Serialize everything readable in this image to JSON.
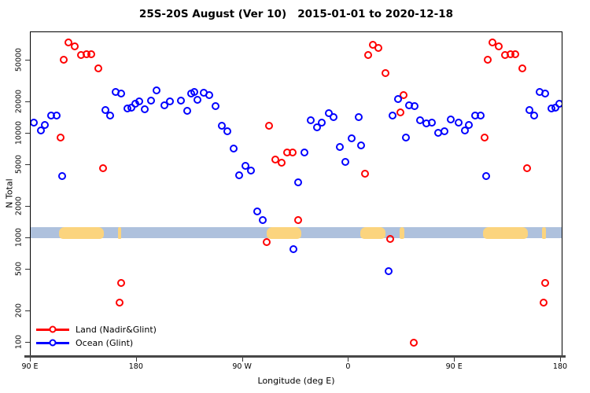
{
  "chart_data": {
    "type": "scatter",
    "title": "25S-20S August (Ver 10)   2015-01-01 to 2020-12-18",
    "xlabel": "Longitude (deg E)",
    "ylabel": "N Total",
    "y_scale": "log",
    "ylim": [
      80,
      94000
    ],
    "grid": false,
    "y_ticks": [
      100,
      200,
      500,
      1000,
      2000,
      5000,
      10000,
      20000,
      50000
    ],
    "x_ticks": [
      {
        "pos_deg": 0,
        "label": "90 E"
      },
      {
        "pos_deg": 90,
        "label": "180"
      },
      {
        "pos_deg": 180,
        "label": "90 W"
      },
      {
        "pos_deg": 270,
        "label": "0"
      },
      {
        "pos_deg": 360,
        "label": "90 E"
      },
      {
        "pos_deg": 450,
        "label": "180"
      }
    ],
    "x_axis_note": "axis runs eastward from 90E across 450 deg; data with lon 90E-180 is plotted at both ends",
    "legend": [
      {
        "label": "Land (Nadir&Glint)",
        "color": "#ff0000"
      },
      {
        "label": "Ocean (Glint)",
        "color": "#0000ff"
      }
    ],
    "legend_position": "bottom-left",
    "map_band": {
      "ocean_color": "#aec1dd",
      "land_color": "#fbd47e",
      "top_n": 1265,
      "bottom_n": 992,
      "patches": [
        {
          "name": "australia",
          "lon": [
            114,
            152
          ]
        },
        {
          "name": "new-caledonia",
          "lon": [
            164,
            167
          ]
        },
        {
          "name": "south-america",
          "lon": [
            -70,
            -40
          ]
        },
        {
          "name": "africa",
          "lon": [
            10,
            31
          ]
        },
        {
          "name": "madagascar",
          "lon": [
            43,
            47
          ]
        }
      ]
    },
    "series": [
      {
        "name": "Land (Nadir&Glint)",
        "color": "#ff0000",
        "points": [
          {
            "lon": -69.9,
            "n": 920
          },
          {
            "lon": -67.7,
            "n": 11800
          },
          {
            "lon": -62.4,
            "n": 5600
          },
          {
            "lon": -57.2,
            "n": 5300
          },
          {
            "lon": -52.1,
            "n": 6600
          },
          {
            "lon": -47.9,
            "n": 6600
          },
          {
            "lon": -42.8,
            "n": 1500
          },
          {
            "lon": 13.6,
            "n": 4100
          },
          {
            "lon": 16.6,
            "n": 56000
          },
          {
            "lon": 20.6,
            "n": 71000
          },
          {
            "lon": 25.1,
            "n": 66000
          },
          {
            "lon": 31.3,
            "n": 38000
          },
          {
            "lon": 35.1,
            "n": 990
          },
          {
            "lon": 44.0,
            "n": 16000
          },
          {
            "lon": 46.3,
            "n": 23300
          },
          {
            "lon": 55.2,
            "n": 100
          },
          {
            "lon": 115.2,
            "n": 9200
          },
          {
            "lon": 117.8,
            "n": 51000
          },
          {
            "lon": 121.9,
            "n": 74000
          },
          {
            "lon": 127.2,
            "n": 68000
          },
          {
            "lon": 132.7,
            "n": 56000
          },
          {
            "lon": 137.2,
            "n": 57000
          },
          {
            "lon": 141.6,
            "n": 57000
          },
          {
            "lon": 147.2,
            "n": 42000
          },
          {
            "lon": 151.6,
            "n": 4700
          },
          {
            "lon": 165.2,
            "n": 240
          },
          {
            "lon": 166.6,
            "n": 370
          }
        ]
      },
      {
        "name": "Ocean (Glint)",
        "color": "#0000ff",
        "points": [
          {
            "lon": -177.7,
            "n": 20200
          },
          {
            "lon": -173.2,
            "n": 17100
          },
          {
            "lon": -167.7,
            "n": 20600
          },
          {
            "lon": -163.2,
            "n": 26000
          },
          {
            "lon": -156.7,
            "n": 18500
          },
          {
            "lon": -151.8,
            "n": 20200
          },
          {
            "lon": -142.5,
            "n": 20600
          },
          {
            "lon": -137.3,
            "n": 16500
          },
          {
            "lon": -133.6,
            "n": 24000
          },
          {
            "lon": -131.0,
            "n": 25000
          },
          {
            "lon": -128.5,
            "n": 21200
          },
          {
            "lon": -123.3,
            "n": 24600
          },
          {
            "lon": -118.2,
            "n": 23200
          },
          {
            "lon": -112.9,
            "n": 18200
          },
          {
            "lon": -107.7,
            "n": 11800
          },
          {
            "lon": -102.9,
            "n": 10500
          },
          {
            "lon": -97.7,
            "n": 7200
          },
          {
            "lon": -92.9,
            "n": 4000
          },
          {
            "lon": -87.7,
            "n": 4900
          },
          {
            "lon": -83.3,
            "n": 4400
          },
          {
            "lon": -77.7,
            "n": 1800
          },
          {
            "lon": -72.8,
            "n": 1500
          },
          {
            "lon": -46.8,
            "n": 780
          },
          {
            "lon": -42.8,
            "n": 3400
          },
          {
            "lon": -37.9,
            "n": 6600
          },
          {
            "lon": -32.3,
            "n": 13400
          },
          {
            "lon": -27.2,
            "n": 11500
          },
          {
            "lon": -23.2,
            "n": 12700
          },
          {
            "lon": -17.2,
            "n": 15600
          },
          {
            "lon": -12.8,
            "n": 14500
          },
          {
            "lon": -7.8,
            "n": 7400
          },
          {
            "lon": -2.7,
            "n": 5400
          },
          {
            "lon": 2.4,
            "n": 9000
          },
          {
            "lon": 8.4,
            "n": 14300
          },
          {
            "lon": 10.6,
            "n": 7700
          },
          {
            "lon": 34.0,
            "n": 480
          },
          {
            "lon": 36.9,
            "n": 14900
          },
          {
            "lon": 41.8,
            "n": 21300
          },
          {
            "lon": 48.5,
            "n": 9200
          },
          {
            "lon": 51.3,
            "n": 18800
          },
          {
            "lon": 55.8,
            "n": 18200
          },
          {
            "lon": 60.7,
            "n": 13500
          },
          {
            "lon": 65.6,
            "n": 12500
          },
          {
            "lon": 70.7,
            "n": 12700
          },
          {
            "lon": 75.7,
            "n": 10200
          },
          {
            "lon": 81.2,
            "n": 10600
          },
          {
            "lon": 86.3,
            "n": 13700
          },
          {
            "lon": 92.9,
            "n": 12700
          },
          {
            "lon": 98.5,
            "n": 10700
          },
          {
            "lon": 102.2,
            "n": 12200
          },
          {
            "lon": 107.4,
            "n": 15000
          },
          {
            "lon": 111.8,
            "n": 14800
          },
          {
            "lon": 116.7,
            "n": 3900
          },
          {
            "lon": 153.4,
            "n": 16800
          },
          {
            "lon": 157.4,
            "n": 14800
          },
          {
            "lon": 162.3,
            "n": 25000
          },
          {
            "lon": 166.8,
            "n": 24000
          },
          {
            "lon": 171.9,
            "n": 17300
          },
          {
            "lon": 175.2,
            "n": 17800
          },
          {
            "lon": 178.6,
            "n": 19400
          }
        ]
      }
    ]
  }
}
